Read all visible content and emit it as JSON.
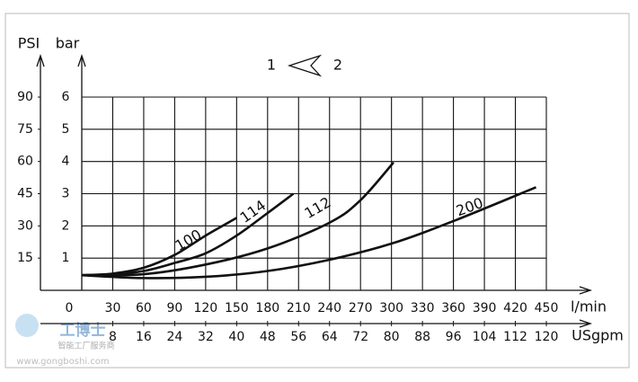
{
  "chart_data": {
    "type": "line",
    "y_label": "bar",
    "y2_label": "PSI",
    "x_label": "l/min",
    "x2_label": "USgpm",
    "flow_direction": {
      "from": "2",
      "to": "1"
    },
    "xlim": [
      0,
      450
    ],
    "xticks": [
      0,
      30,
      60,
      90,
      120,
      150,
      180,
      210,
      240,
      270,
      300,
      330,
      360,
      390,
      420,
      450
    ],
    "x2lim": [
      0,
      120
    ],
    "x2ticks": [
      8,
      16,
      24,
      32,
      40,
      48,
      56,
      64,
      72,
      80,
      88,
      96,
      104,
      112,
      120
    ],
    "ylim": [
      0,
      6
    ],
    "yticks": [
      1,
      2,
      3,
      4,
      5,
      6
    ],
    "y2lim": [
      0,
      90
    ],
    "y2ticks": [
      15,
      30,
      45,
      60,
      75,
      90
    ],
    "grid": true,
    "series": [
      {
        "name": "100",
        "color": "#111111",
        "x": [
          0,
          30,
          60,
          90,
          120,
          150
        ],
        "values": [
          0.47,
          0.52,
          0.7,
          1.1,
          1.7,
          2.25
        ]
      },
      {
        "name": "114",
        "color": "#111111",
        "x": [
          0,
          30,
          60,
          90,
          120,
          150,
          180,
          205
        ],
        "values": [
          0.47,
          0.5,
          0.6,
          0.85,
          1.15,
          1.7,
          2.4,
          3.0
        ]
      },
      {
        "name": "112",
        "color": "#111111",
        "x": [
          0,
          60,
          120,
          180,
          240,
          270,
          302
        ],
        "values": [
          0.47,
          0.5,
          0.8,
          1.3,
          2.1,
          2.8,
          3.97
        ]
      },
      {
        "name": "200",
        "color": "#111111",
        "x": [
          0,
          60,
          120,
          180,
          240,
          300,
          360,
          440
        ],
        "values": [
          0.47,
          0.38,
          0.42,
          0.6,
          0.95,
          1.45,
          2.15,
          3.2
        ]
      }
    ]
  },
  "watermark": {
    "brand": "工博士",
    "tagline": "智能工厂服务商",
    "url": "www.gongboshi.com"
  }
}
